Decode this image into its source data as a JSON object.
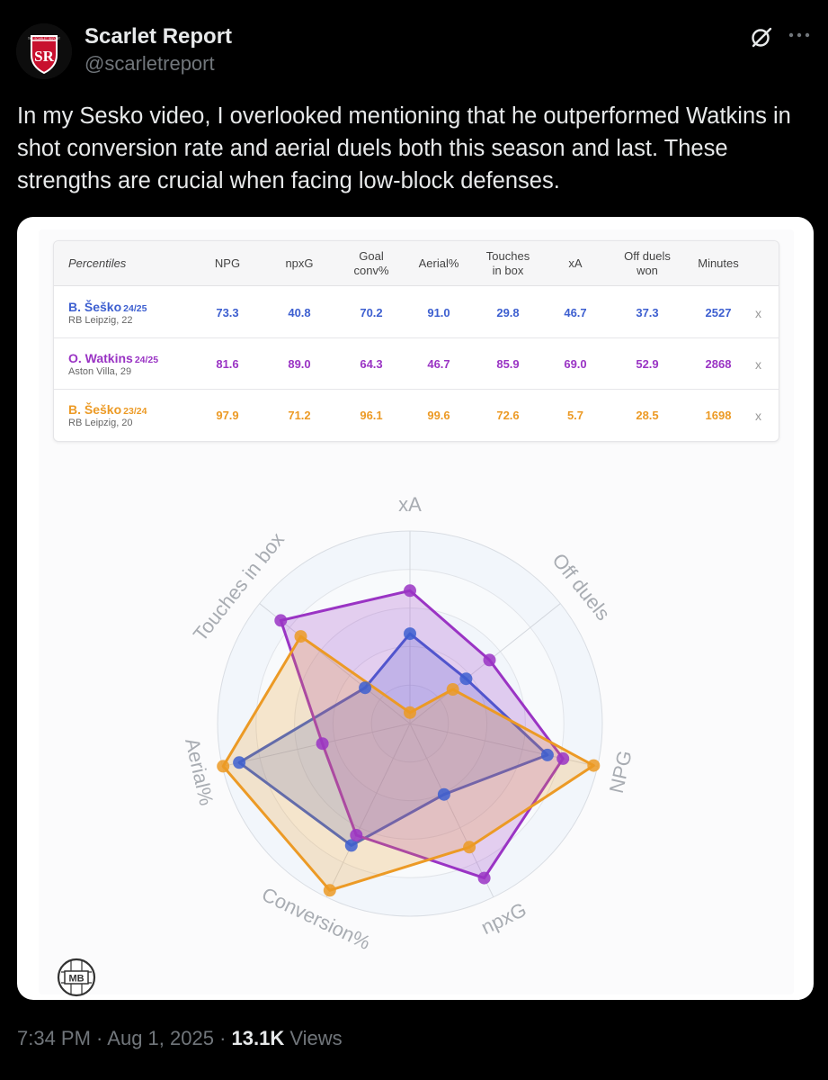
{
  "author": {
    "name": "Scarlet Report",
    "handle": "@scarletreport",
    "avatar_icon": "scarlet-report-shield-logo",
    "avatar_text": "SR",
    "avatar_small_text": "THE SCARLET REPORT"
  },
  "tweet": {
    "text": "In my Sesko video, I overlooked mentioning that he outperformed Watkins in shot conversion rate and aerial duels both this season and last. These strengths are crucial when facing low-block defenses."
  },
  "table": {
    "headers": [
      "Percentiles",
      "NPG",
      "npxG",
      "Goal conv%",
      "Aerial%",
      "Touches in box",
      "xA",
      "Off duels won",
      "Minutes"
    ],
    "rows": [
      {
        "name": "B. Šeško",
        "season": "24/25",
        "club": "RB Leipzig, 22",
        "color": "#3d5fd0",
        "values": [
          "73.3",
          "40.8",
          "70.2",
          "91.0",
          "29.8",
          "46.7",
          "37.3",
          "2527"
        ],
        "remove": "x"
      },
      {
        "name": "O. Watkins",
        "season": "24/25",
        "club": "Aston Villa, 29",
        "color": "#9a34c4",
        "values": [
          "81.6",
          "89.0",
          "64.3",
          "46.7",
          "85.9",
          "69.0",
          "52.9",
          "2868"
        ],
        "remove": "x"
      },
      {
        "name": "B. Šeško",
        "season": "23/24",
        "club": "RB Leipzig, 20",
        "color": "#ec9a25",
        "values": [
          "97.9",
          "71.2",
          "96.1",
          "99.6",
          "72.6",
          "5.7",
          "28.5",
          "1698"
        ],
        "remove": "x"
      }
    ]
  },
  "chart_data": {
    "type": "radar",
    "axes": [
      "NPG",
      "npxG",
      "Conversion%",
      "Aerial%",
      "Touches in box",
      "xA",
      "Off duels"
    ],
    "range": [
      0,
      100
    ],
    "series": [
      {
        "name": "B. Šeško 24/25",
        "color": "#3d5fd0",
        "values": [
          73.3,
          40.8,
          70.2,
          91.0,
          29.8,
          46.7,
          37.3
        ]
      },
      {
        "name": "O. Watkins 24/25",
        "color": "#9a34c4",
        "values": [
          81.6,
          89.0,
          64.3,
          46.7,
          85.9,
          69.0,
          52.9
        ]
      },
      {
        "name": "B. Šeško 23/24",
        "color": "#ec9a25",
        "values": [
          97.9,
          71.2,
          96.1,
          99.6,
          72.6,
          5.7,
          28.5
        ]
      }
    ],
    "series_draw_order": [
      0,
      1,
      2
    ]
  },
  "watermark": {
    "text": "MB",
    "icon": "mb-football-logo"
  },
  "footer": {
    "time": "7:34 PM",
    "separator": " · ",
    "date": "Aug 1, 2025",
    "views_count": "13.1K",
    "views_label": " Views"
  },
  "icons": {
    "grok": "grok-slash-icon",
    "more": "more-dots-icon"
  }
}
